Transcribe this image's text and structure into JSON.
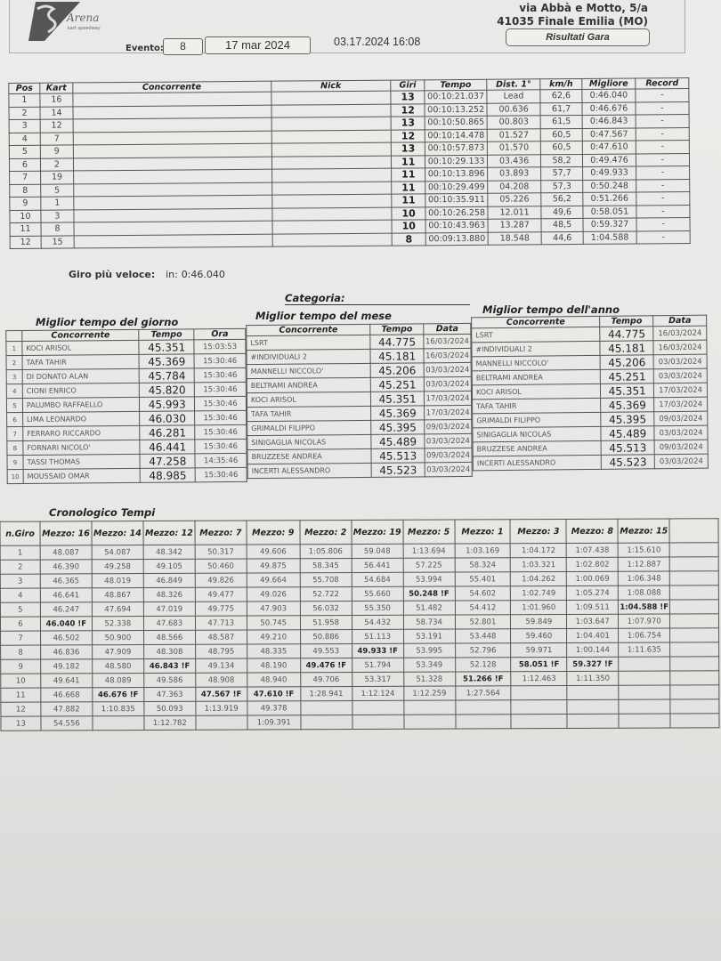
{
  "header": {
    "logo_text": "Arena kart speedway",
    "address_line1": "via Abbà e Motto, 5/a",
    "address_line2": "41035 Finale Emilia (MO)",
    "evento_label": "Evento:",
    "evento_value": "8",
    "date": "17 mar 2024",
    "timestamp": "03.17.2024 16:08",
    "report_title": "Risultati Gara"
  },
  "results": {
    "columns": [
      "Pos",
      "Kart",
      "Concorrente",
      "Nick",
      "Giri",
      "Tempo",
      "Dist. 1°",
      "km/h",
      "Migliore",
      "Record"
    ],
    "rows": [
      [
        "1",
        "16",
        "",
        "",
        "13",
        "00:10:21.037",
        "Lead",
        "62,6",
        "0:46.040",
        "-"
      ],
      [
        "2",
        "14",
        "",
        "",
        "12",
        "00:10:13.252",
        "00.636",
        "61,7",
        "0:46.676",
        "-"
      ],
      [
        "3",
        "12",
        "",
        "",
        "13",
        "00:10:50.865",
        "00.803",
        "61,5",
        "0:46.843",
        "-"
      ],
      [
        "4",
        "7",
        "",
        "",
        "12",
        "00:10:14.478",
        "01.527",
        "60,5",
        "0:47.567",
        "-"
      ],
      [
        "5",
        "9",
        "",
        "",
        "13",
        "00:10:57.873",
        "01.570",
        "60,5",
        "0:47.610",
        "-"
      ],
      [
        "6",
        "2",
        "",
        "",
        "11",
        "00:10:29.133",
        "03.436",
        "58,2",
        "0:49.476",
        "-"
      ],
      [
        "7",
        "19",
        "",
        "",
        "11",
        "00:10:13.896",
        "03.893",
        "57,7",
        "0:49.933",
        "-"
      ],
      [
        "8",
        "5",
        "",
        "",
        "11",
        "00:10:29.499",
        "04.208",
        "57,3",
        "0:50.248",
        "-"
      ],
      [
        "9",
        "1",
        "",
        "",
        "11",
        "00:10:35.911",
        "05.226",
        "56,2",
        "0:51.266",
        "-"
      ],
      [
        "10",
        "3",
        "",
        "",
        "10",
        "00:10:26.258",
        "12.011",
        "49,6",
        "0:58.051",
        "-"
      ],
      [
        "11",
        "8",
        "",
        "",
        "10",
        "00:10:43.963",
        "13.287",
        "48,5",
        "0:59.327",
        "-"
      ],
      [
        "12",
        "15",
        "",
        "",
        "8",
        "00:09:13.880",
        "18.548",
        "44,6",
        "1:04.588",
        "-"
      ]
    ]
  },
  "fastest_lap": {
    "label": "Giro più veloce:",
    "in_label": "in:",
    "value": "0:46.040"
  },
  "categoria_label": "Categoria:",
  "best_day": {
    "title": "Miglior tempo del giorno",
    "columns": [
      "",
      "Concorrente",
      "Tempo",
      "Ora"
    ],
    "rows": [
      [
        "1",
        "KOCI ARISOL",
        "45.351",
        "15:03:53"
      ],
      [
        "2",
        "TAFA TAHIR",
        "45.369",
        "15:30:46"
      ],
      [
        "3",
        "DI DONATO ALAN",
        "45.784",
        "15:30:46"
      ],
      [
        "4",
        "CIONI ENRICO",
        "45.820",
        "15:30:46"
      ],
      [
        "5",
        "PALUMBO RAFFAELLO",
        "45.993",
        "15:30:46"
      ],
      [
        "6",
        "LIMA LEONARDO",
        "46.030",
        "15:30:46"
      ],
      [
        "7",
        "FERRARO RICCARDO",
        "46.281",
        "15:30:46"
      ],
      [
        "8",
        "FORNARI NICOLO'",
        "46.441",
        "15:30:46"
      ],
      [
        "9",
        "TASSI THOMAS",
        "47.258",
        "14:35:46"
      ],
      [
        "10",
        "MOUSSAID OMAR",
        "48.985",
        "15:30:46"
      ]
    ]
  },
  "best_month": {
    "title": "Miglior tempo del mese",
    "columns": [
      "Concorrente",
      "Tempo",
      "Data"
    ],
    "rows": [
      [
        "LSRT",
        "44.775",
        "16/03/2024"
      ],
      [
        "#INDIVIDUALI 2",
        "45.181",
        "16/03/2024"
      ],
      [
        "MANNELLI NICCOLO'",
        "45.206",
        "03/03/2024"
      ],
      [
        "BELTRAMI ANDREA",
        "45.251",
        "03/03/2024"
      ],
      [
        "KOCI ARISOL",
        "45.351",
        "17/03/2024"
      ],
      [
        "TAFA TAHIR",
        "45.369",
        "17/03/2024"
      ],
      [
        "GRIMALDI FILIPPO",
        "45.395",
        "09/03/2024"
      ],
      [
        "SINIGAGLIA NICOLAS",
        "45.489",
        "03/03/2024"
      ],
      [
        "BRUZZESE ANDREA",
        "45.513",
        "09/03/2024"
      ],
      [
        "INCERTI ALESSANDRO",
        "45.523",
        "03/03/2024"
      ]
    ]
  },
  "best_year": {
    "title": "Miglior tempo dell'anno",
    "columns": [
      "Concorrente",
      "Tempo",
      "Data"
    ],
    "rows": [
      [
        "LSRT",
        "44.775",
        "16/03/2024"
      ],
      [
        "#INDIVIDUALI 2",
        "45.181",
        "16/03/2024"
      ],
      [
        "MANNELLI NICCOLO'",
        "45.206",
        "03/03/2024"
      ],
      [
        "BELTRAMI ANDREA",
        "45.251",
        "03/03/2024"
      ],
      [
        "KOCI ARISOL",
        "45.351",
        "17/03/2024"
      ],
      [
        "TAFA TAHIR",
        "45.369",
        "17/03/2024"
      ],
      [
        "GRIMALDI FILIPPO",
        "45.395",
        "09/03/2024"
      ],
      [
        "SINIGAGLIA NICOLAS",
        "45.489",
        "03/03/2024"
      ],
      [
        "BRUZZESE ANDREA",
        "45.513",
        "09/03/2024"
      ],
      [
        "INCERTI ALESSANDRO",
        "45.523",
        "03/03/2024"
      ]
    ]
  },
  "crono": {
    "title": "Cronologico Tempi",
    "columns": [
      "n.Giro",
      "Mezzo: 16",
      "Mezzo: 14",
      "Mezzo: 12",
      "Mezzo: 7",
      "Mezzo: 9",
      "Mezzo: 2",
      "Mezzo: 19",
      "Mezzo: 5",
      "Mezzo: 1",
      "Mezzo: 3",
      "Mezzo: 8",
      "Mezzo: 15",
      ""
    ],
    "rows": [
      [
        "1",
        "48.087",
        "54.087",
        "48.342",
        "50.317",
        "49.606",
        "1:05.806",
        "59.048",
        "1:13.694",
        "1:03.169",
        "1:04.172",
        "1:07.438",
        "1:15.610",
        ""
      ],
      [
        "2",
        "46.390",
        "49.258",
        "49.105",
        "50.460",
        "49.875",
        "58.345",
        "56.441",
        "57.225",
        "58.324",
        "1:03.321",
        "1:02.802",
        "1:12.887",
        ""
      ],
      [
        "3",
        "46.365",
        "48.019",
        "46.849",
        "49.826",
        "49.664",
        "55.708",
        "54.684",
        "53.994",
        "55.401",
        "1:04.262",
        "1:00.069",
        "1:06.348",
        ""
      ],
      [
        "4",
        "46.641",
        "48.867",
        "48.326",
        "49.477",
        "49.026",
        "52.722",
        "55.660",
        "50.248 !F",
        "54.602",
        "1:02.749",
        "1:05.274",
        "1:08.088",
        ""
      ],
      [
        "5",
        "46.247",
        "47.694",
        "47.019",
        "49.775",
        "47.903",
        "56.032",
        "55.350",
        "51.482",
        "54.412",
        "1:01.960",
        "1:09.511",
        "1:04.588 !F",
        ""
      ],
      [
        "6",
        "46.040 !F",
        "52.338",
        "47.683",
        "47.713",
        "50.745",
        "51.958",
        "54.432",
        "58.734",
        "52.801",
        "59.849",
        "1:03.647",
        "1:07.970",
        ""
      ],
      [
        "7",
        "46.502",
        "50.900",
        "48.566",
        "48.587",
        "49.210",
        "50.886",
        "51.113",
        "53.191",
        "53.448",
        "59.460",
        "1:04.401",
        "1:06.754",
        ""
      ],
      [
        "8",
        "46.836",
        "47.909",
        "48.308",
        "48.795",
        "48.335",
        "49.553",
        "49.933 !F",
        "53.995",
        "52.796",
        "59.971",
        "1:00.144",
        "1:11.635",
        ""
      ],
      [
        "9",
        "49.182",
        "48.580",
        "46.843 !F",
        "49.134",
        "48.190",
        "49.476 !F",
        "51.794",
        "53.349",
        "52.128",
        "58.051 !F",
        "59.327 !F",
        "",
        ""
      ],
      [
        "10",
        "49.641",
        "48.089",
        "49.586",
        "48.908",
        "48.940",
        "49.706",
        "53.317",
        "51.328",
        "51.266 !F",
        "1:12.463",
        "1:11.350",
        "",
        ""
      ],
      [
        "11",
        "46.668",
        "46.676 !F",
        "47.363",
        "47.567 !F",
        "47.610 !F",
        "1:28.941",
        "1:12.124",
        "1:12.259",
        "1:27.564",
        "",
        "",
        "",
        ""
      ],
      [
        "12",
        "47.882",
        "1:10.835",
        "50.093",
        "1:13.919",
        "49.378",
        "",
        "",
        "",
        "",
        "",
        "",
        "",
        ""
      ],
      [
        "13",
        "54.556",
        "",
        "1:12.782",
        "",
        "1:09.391",
        "",
        "",
        "",
        "",
        "",
        "",
        "",
        ""
      ]
    ]
  }
}
